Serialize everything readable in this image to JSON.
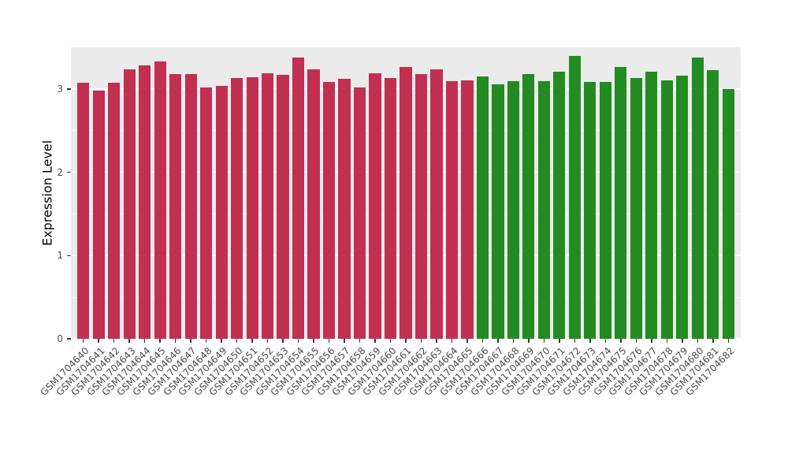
{
  "figure": {
    "background": "#FFFFFF",
    "panel_background": "#EBEBEB",
    "gridline_color": "#FFFFFF",
    "tick_label_color": "#4D4D4D",
    "axis_title_color": "#000000"
  },
  "chart_data": {
    "type": "bar",
    "title": "",
    "xlabel": "",
    "ylabel": "Expression Level",
    "ylim": [
      0,
      3.5
    ],
    "yticks": [
      0,
      1,
      2,
      3
    ],
    "minor_yticks": [
      0.5,
      1.5,
      2.5
    ],
    "grid": true,
    "legend": "none",
    "categories": [
      "GSM1704640",
      "GSM1704641",
      "GSM1704642",
      "GSM1704643",
      "GSM1704644",
      "GSM1704645",
      "GSM1704646",
      "GSM1704647",
      "GSM1704648",
      "GSM1704649",
      "GSM1704650",
      "GSM1704651",
      "GSM1704652",
      "GSM1704653",
      "GSM1704654",
      "GSM1704655",
      "GSM1704656",
      "GSM1704657",
      "GSM1704658",
      "GSM1704659",
      "GSM1704660",
      "GSM1704661",
      "GSM1704662",
      "GSM1704663",
      "GSM1704664",
      "GSM1704665",
      "GSM1704666",
      "GSM1704667",
      "GSM1704668",
      "GSM1704669",
      "GSM1704670",
      "GSM1704671",
      "GSM1704672",
      "GSM1704673",
      "GSM1704674",
      "GSM1704675",
      "GSM1704676",
      "GSM1704677",
      "GSM1704678",
      "GSM1704679",
      "GSM1704680",
      "GSM1704681",
      "GSM1704682"
    ],
    "values": [
      3.07,
      2.98,
      3.07,
      3.24,
      3.28,
      3.33,
      3.18,
      3.18,
      3.02,
      3.04,
      3.13,
      3.14,
      3.19,
      3.17,
      3.38,
      3.24,
      3.08,
      3.12,
      3.02,
      3.19,
      3.13,
      3.26,
      3.18,
      3.24,
      3.09,
      3.1,
      3.15,
      3.06,
      3.09,
      3.18,
      3.09,
      3.21,
      3.4,
      3.08,
      3.08,
      3.26,
      3.13,
      3.21,
      3.1,
      3.16,
      3.38,
      3.23,
      3.0
    ],
    "groups": [
      {
        "name": "red-group",
        "color": "#C13050",
        "start_index": 0,
        "end_index": 25
      },
      {
        "name": "green-group",
        "color": "#228B22",
        "start_index": 26,
        "end_index": 42
      }
    ]
  }
}
